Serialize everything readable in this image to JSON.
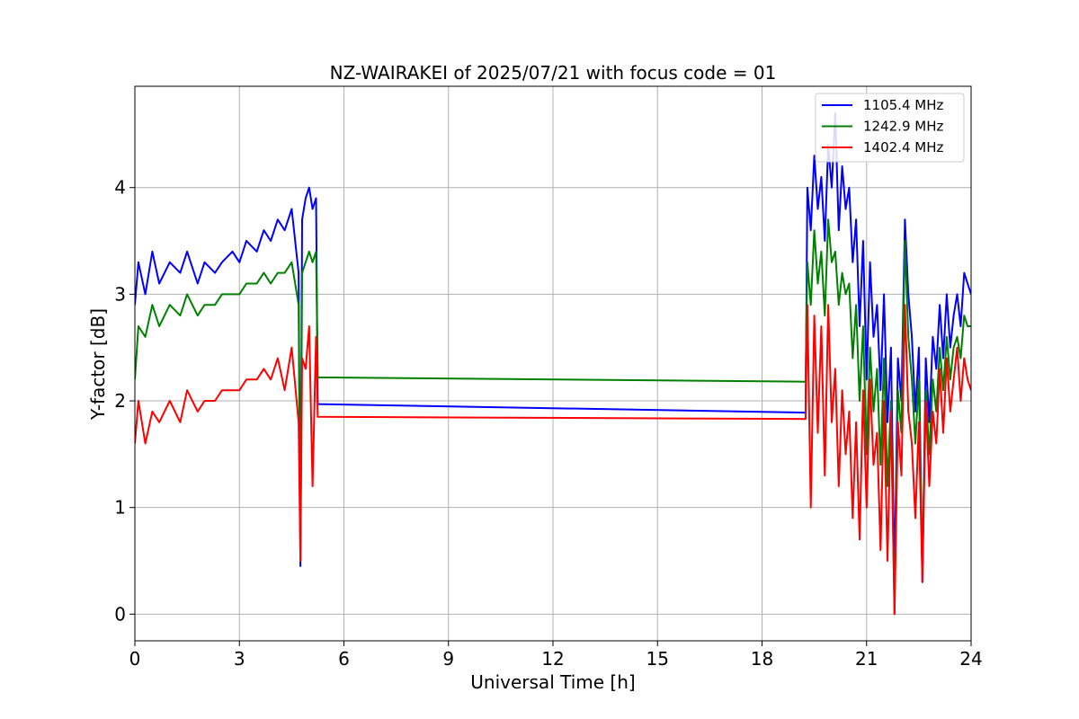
{
  "chart_data": {
    "type": "line",
    "title": "NZ-WAIRAKEI of 2025/07/21 with focus code = 01",
    "xlabel": "Universal Time [h]",
    "ylabel": "Y-factor [dB]",
    "xlim": [
      0,
      24
    ],
    "ylim": [
      -0.25,
      4.95
    ],
    "xticks": [
      0,
      3,
      6,
      9,
      12,
      15,
      18,
      21,
      24
    ],
    "yticks": [
      0,
      1,
      2,
      3,
      4
    ],
    "grid": true,
    "legend_position": "top-right",
    "series": [
      {
        "name": "1105.4 MHz",
        "color": "#0000ff",
        "x": [
          0.0,
          0.1,
          0.3,
          0.5,
          0.7,
          1.0,
          1.3,
          1.5,
          1.8,
          2.0,
          2.3,
          2.5,
          2.8,
          3.0,
          3.2,
          3.5,
          3.7,
          3.9,
          4.1,
          4.3,
          4.5,
          4.7,
          4.75,
          4.8,
          4.9,
          5.0,
          5.1,
          5.2,
          5.25,
          19.2,
          19.25,
          19.3,
          19.4,
          19.5,
          19.6,
          19.7,
          19.8,
          19.9,
          20.0,
          20.1,
          20.2,
          20.3,
          20.4,
          20.5,
          20.6,
          20.7,
          20.8,
          20.9,
          21.0,
          21.1,
          21.2,
          21.3,
          21.4,
          21.5,
          21.6,
          21.7,
          21.8,
          21.9,
          22.0,
          22.1,
          22.2,
          22.3,
          22.4,
          22.5,
          22.6,
          22.7,
          22.8,
          22.9,
          23.0,
          23.1,
          23.2,
          23.3,
          23.4,
          23.5,
          23.6,
          23.7,
          23.8,
          23.9,
          24.0
        ],
        "y": [
          2.9,
          3.3,
          3.0,
          3.4,
          3.1,
          3.3,
          3.2,
          3.4,
          3.1,
          3.3,
          3.2,
          3.3,
          3.4,
          3.3,
          3.5,
          3.4,
          3.6,
          3.5,
          3.7,
          3.6,
          3.8,
          3.2,
          0.45,
          3.7,
          3.9,
          4.0,
          3.8,
          3.9,
          1.97,
          1.89,
          1.89,
          4.0,
          3.6,
          4.3,
          3.8,
          4.1,
          3.5,
          4.4,
          4.0,
          4.7,
          3.6,
          4.2,
          3.8,
          4.0,
          3.3,
          3.7,
          2.7,
          3.5,
          2.2,
          3.3,
          2.6,
          2.9,
          2.1,
          3.0,
          1.8,
          2.5,
          0.3,
          2.4,
          2.0,
          3.7,
          3.0,
          2.6,
          1.9,
          2.5,
          0.3,
          2.4,
          1.8,
          2.6,
          2.3,
          2.9,
          2.4,
          3.0,
          2.5,
          2.8,
          3.0,
          2.7,
          3.2,
          3.1,
          3.0
        ]
      },
      {
        "name": "1242.9 MHz",
        "color": "#008000",
        "x": [
          0.0,
          0.1,
          0.3,
          0.5,
          0.7,
          1.0,
          1.3,
          1.5,
          1.8,
          2.0,
          2.3,
          2.5,
          2.8,
          3.0,
          3.2,
          3.5,
          3.7,
          3.9,
          4.1,
          4.3,
          4.5,
          4.7,
          4.75,
          4.8,
          4.9,
          5.0,
          5.1,
          5.2,
          5.25,
          19.2,
          19.25,
          19.3,
          19.4,
          19.5,
          19.6,
          19.7,
          19.8,
          19.9,
          20.0,
          20.1,
          20.2,
          20.3,
          20.4,
          20.5,
          20.6,
          20.7,
          20.8,
          20.9,
          21.0,
          21.1,
          21.2,
          21.3,
          21.4,
          21.5,
          21.6,
          21.7,
          21.8,
          21.9,
          22.0,
          22.1,
          22.2,
          22.3,
          22.4,
          22.5,
          22.6,
          22.7,
          22.8,
          22.9,
          23.0,
          23.1,
          23.2,
          23.3,
          23.4,
          23.5,
          23.6,
          23.7,
          23.8,
          23.9,
          24.0
        ],
        "y": [
          2.2,
          2.7,
          2.6,
          2.9,
          2.7,
          2.9,
          2.8,
          3.0,
          2.8,
          2.9,
          2.9,
          3.0,
          3.0,
          3.0,
          3.1,
          3.1,
          3.2,
          3.1,
          3.2,
          3.2,
          3.3,
          2.9,
          0.5,
          3.2,
          3.3,
          3.4,
          3.3,
          3.4,
          2.22,
          2.18,
          2.18,
          3.3,
          2.9,
          3.6,
          3.1,
          3.4,
          2.8,
          3.7,
          3.3,
          3.4,
          2.9,
          3.2,
          3.0,
          3.1,
          2.4,
          2.9,
          2.0,
          2.7,
          1.5,
          2.5,
          1.9,
          2.3,
          1.4,
          2.4,
          1.2,
          2.0,
          0.0,
          2.1,
          1.7,
          3.5,
          2.6,
          2.2,
          1.6,
          2.2,
          0.4,
          2.1,
          1.5,
          2.2,
          1.9,
          2.5,
          2.1,
          2.6,
          2.2,
          2.5,
          2.6,
          2.4,
          2.8,
          2.7,
          2.7
        ]
      },
      {
        "name": "1402.4 MHz",
        "color": "#ff0000",
        "x": [
          0.0,
          0.1,
          0.3,
          0.5,
          0.7,
          1.0,
          1.3,
          1.5,
          1.8,
          2.0,
          2.3,
          2.5,
          2.8,
          3.0,
          3.2,
          3.5,
          3.7,
          3.9,
          4.1,
          4.3,
          4.5,
          4.7,
          4.75,
          4.8,
          4.9,
          5.0,
          5.1,
          5.2,
          5.25,
          19.2,
          19.25,
          19.3,
          19.4,
          19.5,
          19.6,
          19.7,
          19.8,
          19.9,
          20.0,
          20.1,
          20.2,
          20.3,
          20.4,
          20.5,
          20.6,
          20.7,
          20.8,
          20.9,
          21.0,
          21.1,
          21.2,
          21.3,
          21.4,
          21.5,
          21.6,
          21.7,
          21.8,
          21.9,
          22.0,
          22.1,
          22.2,
          22.3,
          22.4,
          22.5,
          22.6,
          22.7,
          22.8,
          22.9,
          23.0,
          23.1,
          23.2,
          23.3,
          23.4,
          23.5,
          23.6,
          23.7,
          23.8,
          23.9,
          24.0
        ],
        "y": [
          1.6,
          2.0,
          1.6,
          1.9,
          1.8,
          2.0,
          1.8,
          2.1,
          1.9,
          2.0,
          2.0,
          2.1,
          2.1,
          2.1,
          2.2,
          2.2,
          2.3,
          2.2,
          2.4,
          2.1,
          2.5,
          1.8,
          0.5,
          2.4,
          2.3,
          2.7,
          1.2,
          2.6,
          1.85,
          1.83,
          1.83,
          2.9,
          1.0,
          2.8,
          1.7,
          2.7,
          1.3,
          2.9,
          1.8,
          2.3,
          1.2,
          2.1,
          1.5,
          1.9,
          0.9,
          1.8,
          0.7,
          2.1,
          1.0,
          2.2,
          1.4,
          1.7,
          0.6,
          2.0,
          0.5,
          1.9,
          0.0,
          1.8,
          1.3,
          2.9,
          1.9,
          1.6,
          0.9,
          1.8,
          0.3,
          2.0,
          1.2,
          1.9,
          1.6,
          2.3,
          1.7,
          2.4,
          1.9,
          2.2,
          2.5,
          2.0,
          2.4,
          2.2,
          2.1
        ]
      }
    ]
  }
}
